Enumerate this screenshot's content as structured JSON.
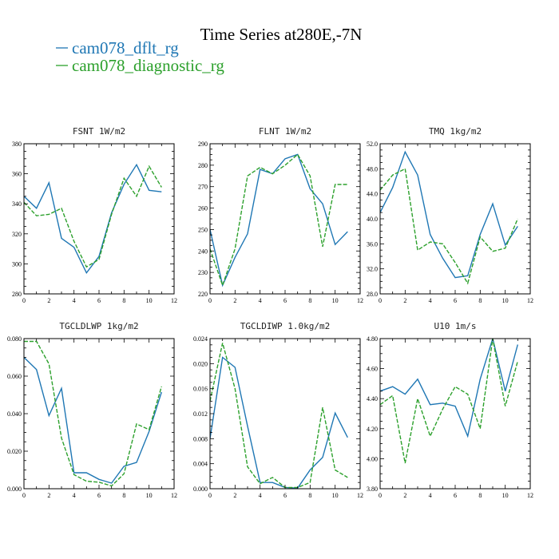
{
  "figure": {
    "title": "Time Series at280E,-7N",
    "colors": {
      "dflt": "#1f77b4",
      "diagnostic": "#2ca02c"
    }
  },
  "legend": [
    {
      "name": "cam078_dflt_rg",
      "color": "#1f77b4",
      "style": "solid"
    },
    {
      "name": "cam078_diagnostic_rg",
      "color": "#2ca02c",
      "style": "dashed"
    }
  ],
  "chart_data": [
    {
      "type": "line",
      "title": "FSNT  1W/m2",
      "x": [
        0,
        1,
        2,
        3,
        4,
        5,
        6,
        7,
        8,
        9,
        10,
        11
      ],
      "xlim": [
        0,
        12
      ],
      "xticks": [
        0,
        2,
        4,
        6,
        8,
        10,
        12
      ],
      "ylim": [
        280,
        380
      ],
      "yticks": [
        280,
        300,
        320,
        340,
        360,
        380
      ],
      "ytick_labels": [
        "280",
        "300",
        "320",
        "340",
        "360",
        "380"
      ],
      "series": [
        {
          "name": "cam078_dflt_rg",
          "values": [
            345,
            337,
            354,
            317,
            311,
            294,
            305,
            334,
            353,
            366,
            349,
            348
          ]
        },
        {
          "name": "cam078_diagnostic_rg",
          "values": [
            341,
            332,
            333,
            337,
            315,
            298,
            303,
            333,
            357,
            345,
            365,
            351
          ]
        }
      ]
    },
    {
      "type": "line",
      "title": "FLNT  1W/m2",
      "x": [
        0,
        1,
        2,
        3,
        4,
        5,
        6,
        7,
        8,
        9,
        10,
        11
      ],
      "xlim": [
        0,
        12
      ],
      "xticks": [
        0,
        2,
        4,
        6,
        8,
        10,
        12
      ],
      "ylim": [
        220,
        290
      ],
      "yticks": [
        220,
        230,
        240,
        250,
        260,
        270,
        280,
        290
      ],
      "ytick_labels": [
        "220",
        "230",
        "240",
        "250",
        "260",
        "270",
        "280",
        "290"
      ],
      "series": [
        {
          "name": "cam078_dflt_rg",
          "values": [
            250,
            224,
            237,
            248,
            278,
            276,
            283,
            285,
            269,
            262,
            243,
            249
          ]
        },
        {
          "name": "cam078_diagnostic_rg",
          "values": [
            241,
            224,
            241,
            275,
            279,
            276,
            280,
            285,
            275,
            242,
            271,
            271
          ]
        }
      ]
    },
    {
      "type": "line",
      "title": "TMQ  1kg/m2",
      "x": [
        0,
        1,
        2,
        3,
        4,
        5,
        6,
        7,
        8,
        9,
        10,
        11
      ],
      "xlim": [
        0,
        12
      ],
      "xticks": [
        0,
        2,
        4,
        6,
        8,
        10,
        12
      ],
      "ylim": [
        28,
        52
      ],
      "yticks": [
        28,
        32,
        36,
        40,
        44,
        48,
        52
      ],
      "ytick_labels": [
        "28.0",
        "32.0",
        "36.0",
        "40.0",
        "44.0",
        "48.0",
        "52.0"
      ],
      "series": [
        {
          "name": "cam078_dflt_rg",
          "values": [
            41.0,
            45.0,
            50.7,
            47.0,
            37.5,
            33.7,
            30.6,
            30.9,
            37.5,
            42.4,
            35.8,
            38.8
          ]
        },
        {
          "name": "cam078_diagnostic_rg",
          "values": [
            44.6,
            47.0,
            48.0,
            35.0,
            36.3,
            36.0,
            33.0,
            29.7,
            37.1,
            34.8,
            35.3,
            40.0
          ]
        }
      ]
    },
    {
      "type": "line",
      "title": "TGCLDLWP  1kg/m2",
      "x": [
        0,
        1,
        2,
        3,
        4,
        5,
        6,
        7,
        8,
        9,
        10,
        11
      ],
      "xlim": [
        0,
        12
      ],
      "xticks": [
        0,
        2,
        4,
        6,
        8,
        10,
        12
      ],
      "ylim": [
        0,
        0.08
      ],
      "yticks": [
        0,
        0.02,
        0.04,
        0.06,
        0.08
      ],
      "ytick_labels": [
        "0.000",
        "0.020",
        "0.040",
        "0.060",
        "0.080"
      ],
      "series": [
        {
          "name": "cam078_dflt_rg",
          "values": [
            0.07,
            0.0635,
            0.039,
            0.0535,
            0.0085,
            0.0085,
            0.005,
            0.003,
            0.012,
            0.014,
            0.0305,
            0.0515
          ]
        },
        {
          "name": "cam078_diagnostic_rg",
          "values": [
            0.0785,
            0.0785,
            0.0665,
            0.027,
            0.0075,
            0.004,
            0.0035,
            0.0015,
            0.008,
            0.0345,
            0.0315,
            0.0545
          ]
        }
      ]
    },
    {
      "type": "line",
      "title": "TGCLDIWP  1.0kg/m2",
      "x": [
        0,
        1,
        2,
        3,
        4,
        5,
        6,
        7,
        8,
        9,
        10,
        11
      ],
      "xlim": [
        0,
        12
      ],
      "xticks": [
        0,
        2,
        4,
        6,
        8,
        10,
        12
      ],
      "ylim": [
        0,
        0.024
      ],
      "yticks": [
        0,
        0.004,
        0.008,
        0.012,
        0.016,
        0.02,
        0.024
      ],
      "ytick_labels": [
        "0.000",
        "0.004",
        "0.008",
        "0.012",
        "0.016",
        "0.020",
        "0.024"
      ],
      "series": [
        {
          "name": "cam078_dflt_rg",
          "values": [
            0.008,
            0.021,
            0.0194,
            0.01,
            0.001,
            0.001,
            0.0002,
            0.0001,
            0.003,
            0.005,
            0.0121,
            0.0082
          ]
        },
        {
          "name": "cam078_diagnostic_rg",
          "values": [
            0.014,
            0.0233,
            0.016,
            0.0035,
            0.0008,
            0.0018,
            0.0002,
            0.0002,
            0.001,
            0.013,
            0.003,
            0.0018
          ]
        }
      ]
    },
    {
      "type": "line",
      "title": "U10  1m/s",
      "x": [
        0,
        1,
        2,
        3,
        4,
        5,
        6,
        7,
        8,
        9,
        10,
        11
      ],
      "xlim": [
        0,
        12
      ],
      "xticks": [
        0,
        2,
        4,
        6,
        8,
        10,
        12
      ],
      "ylim": [
        3.8,
        4.8
      ],
      "yticks": [
        3.8,
        4.0,
        4.2,
        4.4,
        4.6,
        4.8
      ],
      "ytick_labels": [
        "3.80",
        "4.00",
        "4.20",
        "4.40",
        "4.60",
        "4.80"
      ],
      "series": [
        {
          "name": "cam078_dflt_rg",
          "values": [
            4.45,
            4.48,
            4.43,
            4.53,
            4.36,
            4.37,
            4.35,
            4.15,
            4.53,
            4.8,
            4.45,
            4.76
          ]
        },
        {
          "name": "cam078_diagnostic_rg",
          "values": [
            4.36,
            4.42,
            3.97,
            4.4,
            4.15,
            4.33,
            4.48,
            4.43,
            4.2,
            4.8,
            4.35,
            4.65
          ]
        }
      ]
    }
  ]
}
